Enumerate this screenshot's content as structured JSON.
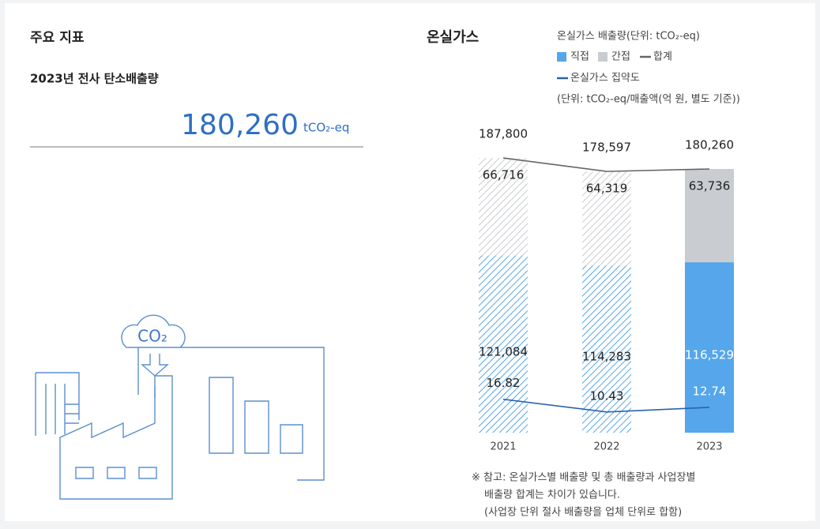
{
  "summary": {
    "section_title": "주요 지표",
    "label": "2023년 전사 탄소배출량",
    "value": "180,260",
    "unit": "tCO₂-eq",
    "illustration_label": "CO₂"
  },
  "chart_data": {
    "type": "bar",
    "title": "온실가스",
    "legend_title": "온실가스 배출량(단위: tCO₂-eq)",
    "legend_subtitle": "(단위: tCO₂-eq/매출액(억 원, 별도 기준))",
    "categories": [
      "2021",
      "2022",
      "2023"
    ],
    "hatched": [
      true,
      true,
      false
    ],
    "ylim": [
      0,
      190000
    ],
    "y2lim": [
      0,
      140
    ],
    "series": [
      {
        "name": "직접",
        "color": "#55a6ea",
        "values": [
          121084,
          114283,
          116529
        ],
        "value_labels": [
          "121,084",
          "114,283",
          "116,529"
        ]
      },
      {
        "name": "간접",
        "color": "#c9ccd0",
        "values": [
          66716,
          64319,
          63736
        ],
        "value_labels": [
          "66,716",
          "64,319",
          "63,736"
        ]
      },
      {
        "name": "합계",
        "color": "#666666",
        "values": [
          187800,
          178597,
          180260
        ],
        "value_labels": [
          "187,800",
          "178,597",
          "180,260"
        ]
      },
      {
        "name": "온실가스 집약도",
        "color": "#2b62ae",
        "axis": "y2",
        "values": [
          16.82,
          10.43,
          12.74
        ]
      }
    ],
    "note": [
      "※ 참고: 온실가스별 배출량 및 총 배출량과 사업장별",
      "배출량 합계는 차이가 있습니다.",
      "(사업장 단위 절사 배출량을 업체 단위로 합함)"
    ]
  }
}
